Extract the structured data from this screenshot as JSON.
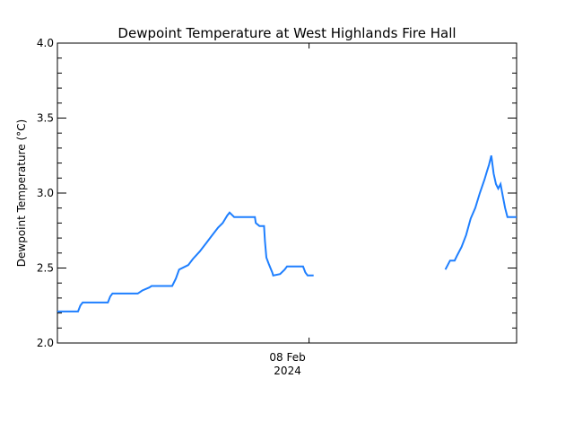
{
  "chart_data": {
    "type": "line",
    "title": "Dewpoint Temperature at West Highlands Fire Hall",
    "xlabel": "",
    "ylabel": "Dewpoint Temperature (°C)",
    "ylim": [
      2.0,
      4.0
    ],
    "yticks": [
      "2.0",
      "2.5",
      "3.0",
      "3.5",
      "4.0"
    ],
    "y_minor_step": 0.1,
    "xticks": [
      {
        "label": "08 Feb",
        "sublabel": "2024",
        "pos": 0.548
      }
    ],
    "grid": false,
    "legend": null,
    "color": "#1e7fff",
    "series": [
      {
        "name": "Dewpoint",
        "segments": [
          [
            [
              0.0,
              2.21
            ],
            [
              0.045,
              2.21
            ],
            [
              0.05,
              2.25
            ],
            [
              0.055,
              2.27
            ],
            [
              0.11,
              2.27
            ],
            [
              0.115,
              2.31
            ],
            [
              0.12,
              2.33
            ],
            [
              0.175,
              2.33
            ],
            [
              0.185,
              2.35
            ],
            [
              0.2,
              2.37
            ],
            [
              0.205,
              2.38
            ],
            [
              0.25,
              2.38
            ],
            [
              0.258,
              2.43
            ],
            [
              0.265,
              2.49
            ],
            [
              0.285,
              2.52
            ],
            [
              0.295,
              2.56
            ],
            [
              0.31,
              2.61
            ],
            [
              0.325,
              2.67
            ],
            [
              0.335,
              2.71
            ],
            [
              0.35,
              2.77
            ],
            [
              0.36,
              2.8
            ],
            [
              0.37,
              2.85
            ],
            [
              0.375,
              2.87
            ],
            [
              0.385,
              2.84
            ],
            [
              0.43,
              2.84
            ],
            [
              0.432,
              2.8
            ],
            [
              0.44,
              2.78
            ],
            [
              0.45,
              2.78
            ],
            [
              0.452,
              2.68
            ],
            [
              0.455,
              2.57
            ],
            [
              0.46,
              2.53
            ],
            [
              0.468,
              2.47
            ],
            [
              0.47,
              2.45
            ],
            [
              0.485,
              2.46
            ],
            [
              0.495,
              2.49
            ],
            [
              0.5,
              2.51
            ],
            [
              0.535,
              2.51
            ],
            [
              0.54,
              2.47
            ],
            [
              0.545,
              2.45
            ],
            [
              0.558,
              2.45
            ]
          ],
          [
            [
              0.845,
              2.49
            ],
            [
              0.855,
              2.55
            ],
            [
              0.865,
              2.55
            ],
            [
              0.87,
              2.58
            ],
            [
              0.88,
              2.64
            ],
            [
              0.89,
              2.72
            ],
            [
              0.9,
              2.83
            ],
            [
              0.91,
              2.9
            ],
            [
              0.92,
              3.0
            ],
            [
              0.93,
              3.09
            ],
            [
              0.935,
              3.14
            ],
            [
              0.94,
              3.19
            ],
            [
              0.945,
              3.25
            ],
            [
              0.95,
              3.13
            ],
            [
              0.955,
              3.06
            ],
            [
              0.96,
              3.03
            ],
            [
              0.965,
              3.06
            ],
            [
              0.97,
              2.98
            ],
            [
              0.975,
              2.9
            ],
            [
              0.98,
              2.84
            ],
            [
              1.0,
              2.84
            ]
          ]
        ]
      }
    ]
  }
}
